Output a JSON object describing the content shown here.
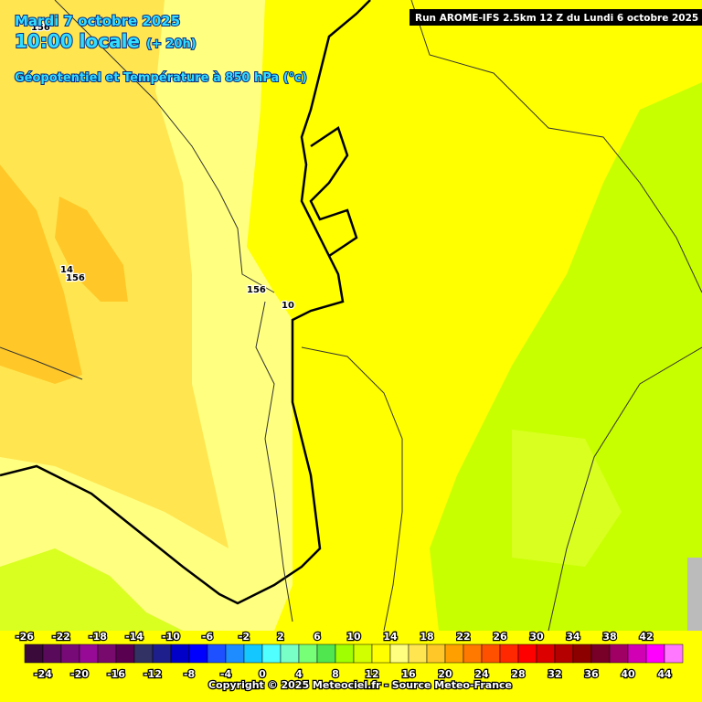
{
  "header": {
    "date": "Mardi 7 octobre 2025",
    "time": "10:00 locale",
    "lead": "(+ 20h)",
    "field": "Géopotentiel et Température à 850 hPa (°c)",
    "run": "Run AROME-IFS 2.5km 12 Z du Lundi 6 octobre 2025"
  },
  "contour_labels": [
    "156",
    "14",
    "156",
    "156",
    "10"
  ],
  "colorbar": {
    "labels": [
      "-26",
      "-24",
      "-22",
      "-20",
      "-18",
      "-16",
      "-14",
      "-12",
      "-10",
      "-8",
      "-6",
      "-4",
      "-2",
      "0",
      "2",
      "4",
      "6",
      "8",
      "10",
      "12",
      "14",
      "16",
      "18",
      "20",
      "22",
      "24",
      "26",
      "28",
      "30",
      "32",
      "34",
      "36",
      "38",
      "40",
      "42",
      "44"
    ],
    "colors": [
      "#3a0a3a",
      "#5a0a5a",
      "#780a78",
      "#960a96",
      "#780a6e",
      "#5a0050",
      "#323264",
      "#1e1e8c",
      "#0000c8",
      "#0000ff",
      "#1e50ff",
      "#1e8cff",
      "#14c8ff",
      "#50ffff",
      "#78ffc8",
      "#78ff78",
      "#50e650",
      "#a0ff00",
      "#d2ff00",
      "#ffff00",
      "#ffff80",
      "#ffe650",
      "#ffc828",
      "#ffa000",
      "#ff7800",
      "#ff5000",
      "#ff2800",
      "#ff0000",
      "#dc0000",
      "#b40000",
      "#8c0000",
      "#780028",
      "#a00064",
      "#d200b4",
      "#ff00ff",
      "#ff78ff"
    ]
  },
  "footer": {
    "copyright": "Copyright © 2025 Meteociel.fr - Source Meteo-France"
  }
}
